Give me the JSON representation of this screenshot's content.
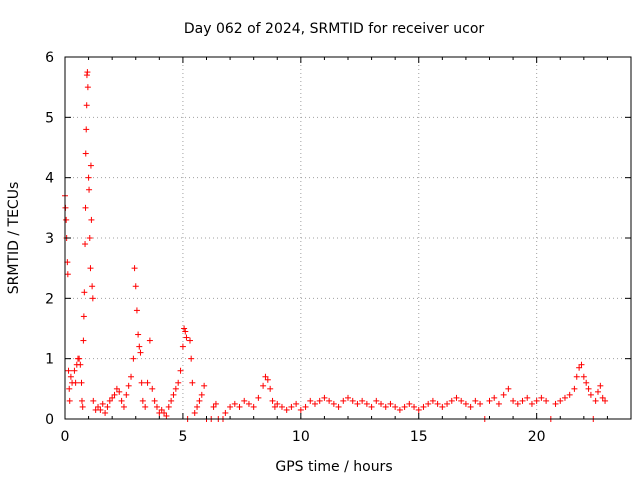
{
  "chart_data": {
    "type": "scatter",
    "title": "Day 062 of 2024, SRMTID for receiver ucor",
    "xlabel": "GPS time / hours",
    "ylabel": "SRMTID / TECUs",
    "xlim": [
      0,
      24
    ],
    "ylim": [
      0,
      6
    ],
    "xticks": [
      "0",
      "5",
      "10",
      "15",
      "20"
    ],
    "yticks": [
      "0",
      "1",
      "2",
      "3",
      "4",
      "5",
      "6"
    ],
    "grid": true,
    "marker": "+",
    "color": "#ff0000",
    "series": [
      {
        "name": "SRMTID",
        "points": [
          [
            0.0,
            3.7
          ],
          [
            0.02,
            3.5
          ],
          [
            0.05,
            3.3
          ],
          [
            0.07,
            3.0
          ],
          [
            0.1,
            2.6
          ],
          [
            0.12,
            2.4
          ],
          [
            0.15,
            0.8
          ],
          [
            0.18,
            0.5
          ],
          [
            0.2,
            0.3
          ],
          [
            0.25,
            0.7
          ],
          [
            0.3,
            0.6
          ],
          [
            0.4,
            0.8
          ],
          [
            0.45,
            0.6
          ],
          [
            0.5,
            0.9
          ],
          [
            0.55,
            1.0
          ],
          [
            0.6,
            1.0
          ],
          [
            0.65,
            0.9
          ],
          [
            0.7,
            0.6
          ],
          [
            0.72,
            0.3
          ],
          [
            0.75,
            0.2
          ],
          [
            0.78,
            1.3
          ],
          [
            0.8,
            1.7
          ],
          [
            0.82,
            2.1
          ],
          [
            0.85,
            2.9
          ],
          [
            0.87,
            3.5
          ],
          [
            0.88,
            4.4
          ],
          [
            0.9,
            4.8
          ],
          [
            0.92,
            5.2
          ],
          [
            0.93,
            5.7
          ],
          [
            0.95,
            5.75
          ],
          [
            0.97,
            5.5
          ],
          [
            1.0,
            4.0
          ],
          [
            1.02,
            3.8
          ],
          [
            1.05,
            3.0
          ],
          [
            1.08,
            2.5
          ],
          [
            1.1,
            4.2
          ],
          [
            1.12,
            3.3
          ],
          [
            1.15,
            2.2
          ],
          [
            1.18,
            2.0
          ],
          [
            1.2,
            0.3
          ],
          [
            1.3,
            0.15
          ],
          [
            1.4,
            0.2
          ],
          [
            1.5,
            0.15
          ],
          [
            1.6,
            0.25
          ],
          [
            1.7,
            0.1
          ],
          [
            1.8,
            0.2
          ],
          [
            1.9,
            0.3
          ],
          [
            2.0,
            0.35
          ],
          [
            2.1,
            0.4
          ],
          [
            2.2,
            0.5
          ],
          [
            2.3,
            0.45
          ],
          [
            2.4,
            0.3
          ],
          [
            2.5,
            0.2
          ],
          [
            2.6,
            0.4
          ],
          [
            2.7,
            0.55
          ],
          [
            2.8,
            0.7
          ],
          [
            2.9,
            1.0
          ],
          [
            2.95,
            2.5
          ],
          [
            3.0,
            2.2
          ],
          [
            3.05,
            1.8
          ],
          [
            3.1,
            1.4
          ],
          [
            3.15,
            1.2
          ],
          [
            3.2,
            1.1
          ],
          [
            3.25,
            0.6
          ],
          [
            3.3,
            0.3
          ],
          [
            3.4,
            0.2
          ],
          [
            3.5,
            0.6
          ],
          [
            3.6,
            1.3
          ],
          [
            3.7,
            0.5
          ],
          [
            3.8,
            0.3
          ],
          [
            3.9,
            0.2
          ],
          [
            4.0,
            0.1
          ],
          [
            4.1,
            0.15
          ],
          [
            4.2,
            0.1
          ],
          [
            4.3,
            0.05
          ],
          [
            4.4,
            0.2
          ],
          [
            4.5,
            0.3
          ],
          [
            4.6,
            0.4
          ],
          [
            4.7,
            0.5
          ],
          [
            4.8,
            0.6
          ],
          [
            4.9,
            0.8
          ],
          [
            5.0,
            1.2
          ],
          [
            5.05,
            1.5
          ],
          [
            5.1,
            1.45
          ],
          [
            5.15,
            1.35
          ],
          [
            5.2,
            0.0
          ],
          [
            5.3,
            1.3
          ],
          [
            5.35,
            1.0
          ],
          [
            5.4,
            0.6
          ],
          [
            5.5,
            0.1
          ],
          [
            5.6,
            0.2
          ],
          [
            5.7,
            0.3
          ],
          [
            5.8,
            0.4
          ],
          [
            5.9,
            0.55
          ],
          [
            6.0,
            0.0
          ],
          [
            6.2,
            0.0
          ],
          [
            6.3,
            0.2
          ],
          [
            6.4,
            0.25
          ],
          [
            6.5,
            0.0
          ],
          [
            6.7,
            0.0
          ],
          [
            6.8,
            0.1
          ],
          [
            7.0,
            0.2
          ],
          [
            7.2,
            0.25
          ],
          [
            7.4,
            0.2
          ],
          [
            7.6,
            0.3
          ],
          [
            7.8,
            0.25
          ],
          [
            8.0,
            0.2
          ],
          [
            8.2,
            0.35
          ],
          [
            8.4,
            0.55
          ],
          [
            8.5,
            0.7
          ],
          [
            8.6,
            0.65
          ],
          [
            8.7,
            0.5
          ],
          [
            8.8,
            0.3
          ],
          [
            8.9,
            0.2
          ],
          [
            9.0,
            0.25
          ],
          [
            9.2,
            0.2
          ],
          [
            9.4,
            0.15
          ],
          [
            9.6,
            0.2
          ],
          [
            9.8,
            0.25
          ],
          [
            10.0,
            0.15
          ],
          [
            10.2,
            0.2
          ],
          [
            10.4,
            0.3
          ],
          [
            10.6,
            0.25
          ],
          [
            10.8,
            0.3
          ],
          [
            11.0,
            0.35
          ],
          [
            11.2,
            0.3
          ],
          [
            11.4,
            0.25
          ],
          [
            11.6,
            0.2
          ],
          [
            11.8,
            0.3
          ],
          [
            12.0,
            0.35
          ],
          [
            12.2,
            0.3
          ],
          [
            12.4,
            0.25
          ],
          [
            12.6,
            0.3
          ],
          [
            12.8,
            0.25
          ],
          [
            13.0,
            0.2
          ],
          [
            13.2,
            0.3
          ],
          [
            13.4,
            0.25
          ],
          [
            13.6,
            0.2
          ],
          [
            13.8,
            0.25
          ],
          [
            14.0,
            0.2
          ],
          [
            14.2,
            0.15
          ],
          [
            14.4,
            0.2
          ],
          [
            14.6,
            0.25
          ],
          [
            14.8,
            0.2
          ],
          [
            15.0,
            0.15
          ],
          [
            15.2,
            0.2
          ],
          [
            15.4,
            0.25
          ],
          [
            15.6,
            0.3
          ],
          [
            15.8,
            0.25
          ],
          [
            16.0,
            0.2
          ],
          [
            16.2,
            0.25
          ],
          [
            16.4,
            0.3
          ],
          [
            16.6,
            0.35
          ],
          [
            16.8,
            0.3
          ],
          [
            17.0,
            0.25
          ],
          [
            17.2,
            0.2
          ],
          [
            17.4,
            0.3
          ],
          [
            17.6,
            0.25
          ],
          [
            17.8,
            0.0
          ],
          [
            18.0,
            0.3
          ],
          [
            18.2,
            0.35
          ],
          [
            18.4,
            0.25
          ],
          [
            18.6,
            0.4
          ],
          [
            18.8,
            0.5
          ],
          [
            19.0,
            0.3
          ],
          [
            19.2,
            0.25
          ],
          [
            19.4,
            0.3
          ],
          [
            19.6,
            0.35
          ],
          [
            19.8,
            0.25
          ],
          [
            20.0,
            0.3
          ],
          [
            20.2,
            0.35
          ],
          [
            20.4,
            0.3
          ],
          [
            20.6,
            0.0
          ],
          [
            20.8,
            0.25
          ],
          [
            21.0,
            0.3
          ],
          [
            21.2,
            0.35
          ],
          [
            21.4,
            0.4
          ],
          [
            21.6,
            0.5
          ],
          [
            21.7,
            0.7
          ],
          [
            21.8,
            0.85
          ],
          [
            21.9,
            0.9
          ],
          [
            22.0,
            0.7
          ],
          [
            22.1,
            0.6
          ],
          [
            22.2,
            0.5
          ],
          [
            22.3,
            0.4
          ],
          [
            22.4,
            0.0
          ],
          [
            22.5,
            0.3
          ],
          [
            22.6,
            0.45
          ],
          [
            22.7,
            0.55
          ],
          [
            22.8,
            0.35
          ],
          [
            22.9,
            0.3
          ]
        ]
      }
    ]
  }
}
